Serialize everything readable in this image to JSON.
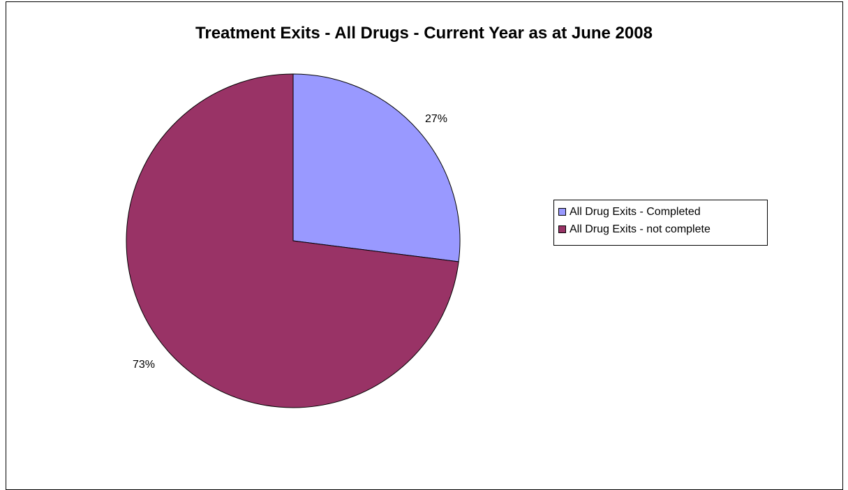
{
  "chart_data": {
    "type": "pie",
    "title": "Treatment Exits - All Drugs - Current Year as at June 2008",
    "categories": [
      "All Drug Exits - Completed",
      "All Drug Exits - not complete"
    ],
    "values": [
      27,
      73
    ],
    "labels": [
      "27%",
      "73%"
    ],
    "colors": [
      "#9999ff",
      "#993366"
    ],
    "legend_position": "right"
  }
}
